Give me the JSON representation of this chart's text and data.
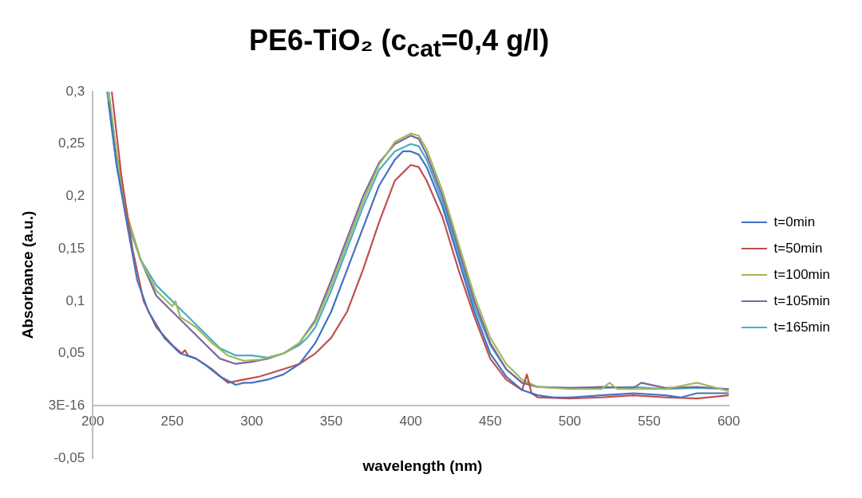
{
  "chart_data": {
    "type": "line",
    "title": "PE6-TiO₂ (c$_{cat}$=0,4 g/l)",
    "xlabel": "wavelength (nm)",
    "ylabel": "Absorbance (a.u.)",
    "xlim": [
      200,
      600
    ],
    "xticks": [
      200,
      250,
      300,
      350,
      400,
      450,
      500,
      550,
      600
    ],
    "ylim": [
      -0.05,
      0.3
    ],
    "yticks": [
      {
        "value": -0.05,
        "label": "-0,05"
      },
      {
        "value": 0,
        "label": "3E-16"
      },
      {
        "value": 0.05,
        "label": "0,05"
      },
      {
        "value": 0.1,
        "label": "0,1"
      },
      {
        "value": 0.15,
        "label": "0,15"
      },
      {
        "value": 0.2,
        "label": "0,2"
      },
      {
        "value": 0.25,
        "label": "0,25"
      },
      {
        "value": 0.3,
        "label": "0,3"
      }
    ],
    "grid": false,
    "legend": "right",
    "marker": "none",
    "line_style": "solid",
    "series": [
      {
        "name": "t=0min",
        "color": "#4472c4",
        "x": [
          210,
          215,
          222,
          228,
          235,
          245,
          255,
          265,
          270,
          280,
          290,
          295,
          300,
          310,
          320,
          330,
          340,
          350,
          360,
          370,
          380,
          390,
          395,
          400,
          405,
          410,
          420,
          430,
          440,
          450,
          460,
          470,
          480,
          490,
          500,
          520,
          540,
          560,
          570,
          580,
          600
        ],
        "values": [
          0.29,
          0.23,
          0.17,
          0.12,
          0.09,
          0.065,
          0.05,
          0.045,
          0.04,
          0.028,
          0.02,
          0.022,
          0.022,
          0.025,
          0.03,
          0.04,
          0.06,
          0.09,
          0.13,
          0.17,
          0.21,
          0.235,
          0.243,
          0.243,
          0.24,
          0.228,
          0.19,
          0.14,
          0.09,
          0.05,
          0.028,
          0.015,
          0.01,
          0.008,
          0.008,
          0.01,
          0.012,
          0.01,
          0.008,
          0.012,
          0.012
        ]
      },
      {
        "name": "t=50min",
        "color": "#c0504d",
        "x": [
          212,
          218,
          225,
          232,
          240,
          250,
          256,
          258,
          260,
          265,
          275,
          285,
          295,
          305,
          320,
          330,
          340,
          350,
          360,
          370,
          380,
          390,
          400,
          405,
          410,
          420,
          430,
          440,
          450,
          460,
          470,
          473,
          476,
          480,
          500,
          520,
          540,
          560,
          580,
          600
        ],
        "values": [
          0.3,
          0.22,
          0.15,
          0.1,
          0.075,
          0.058,
          0.05,
          0.053,
          0.048,
          0.045,
          0.035,
          0.022,
          0.025,
          0.028,
          0.035,
          0.04,
          0.05,
          0.065,
          0.09,
          0.13,
          0.175,
          0.215,
          0.23,
          0.228,
          0.215,
          0.18,
          0.13,
          0.085,
          0.045,
          0.025,
          0.015,
          0.03,
          0.012,
          0.008,
          0.007,
          0.008,
          0.01,
          0.008,
          0.007,
          0.01
        ]
      },
      {
        "name": "t=100min",
        "color": "#9bbb59",
        "x": [
          210,
          215,
          222,
          230,
          240,
          250,
          252,
          255,
          265,
          275,
          285,
          295,
          305,
          320,
          330,
          340,
          350,
          360,
          370,
          380,
          390,
          400,
          405,
          410,
          420,
          430,
          440,
          450,
          460,
          470,
          480,
          500,
          520,
          525,
          530,
          540,
          560,
          580,
          600
        ],
        "values": [
          0.3,
          0.24,
          0.18,
          0.14,
          0.11,
          0.095,
          0.1,
          0.085,
          0.075,
          0.06,
          0.048,
          0.043,
          0.044,
          0.05,
          0.06,
          0.08,
          0.115,
          0.155,
          0.195,
          0.23,
          0.252,
          0.26,
          0.258,
          0.245,
          0.205,
          0.155,
          0.105,
          0.065,
          0.04,
          0.025,
          0.018,
          0.016,
          0.016,
          0.022,
          0.016,
          0.016,
          0.016,
          0.022,
          0.014
        ]
      },
      {
        "name": "t=105min",
        "color": "#8064a2",
        "x": [
          210,
          215,
          222,
          230,
          240,
          250,
          260,
          270,
          280,
          290,
          300,
          310,
          320,
          330,
          340,
          350,
          360,
          370,
          380,
          390,
          400,
          405,
          410,
          420,
          430,
          440,
          450,
          460,
          470,
          480,
          500,
          520,
          540,
          545,
          560,
          580,
          600
        ],
        "values": [
          0.3,
          0.24,
          0.18,
          0.14,
          0.105,
          0.09,
          0.075,
          0.06,
          0.045,
          0.04,
          0.042,
          0.045,
          0.05,
          0.06,
          0.082,
          0.12,
          0.16,
          0.2,
          0.232,
          0.25,
          0.258,
          0.255,
          0.24,
          0.2,
          0.15,
          0.1,
          0.06,
          0.035,
          0.022,
          0.018,
          0.017,
          0.018,
          0.017,
          0.022,
          0.017,
          0.018,
          0.016
        ]
      },
      {
        "name": "t=165min",
        "color": "#4bacc6",
        "x": [
          209,
          215,
          222,
          230,
          240,
          250,
          260,
          270,
          280,
          290,
          295,
          300,
          310,
          320,
          330,
          335,
          340,
          350,
          360,
          370,
          380,
          390,
          400,
          405,
          410,
          420,
          430,
          440,
          450,
          460,
          470,
          480,
          500,
          520,
          540,
          560,
          580,
          600
        ],
        "values": [
          0.3,
          0.23,
          0.175,
          0.14,
          0.115,
          0.1,
          0.085,
          0.07,
          0.055,
          0.048,
          0.048,
          0.048,
          0.046,
          0.05,
          0.058,
          0.065,
          0.075,
          0.11,
          0.15,
          0.19,
          0.225,
          0.243,
          0.25,
          0.248,
          0.235,
          0.195,
          0.145,
          0.095,
          0.058,
          0.035,
          0.022,
          0.018,
          0.017,
          0.017,
          0.018,
          0.016,
          0.017,
          0.016
        ]
      }
    ]
  }
}
